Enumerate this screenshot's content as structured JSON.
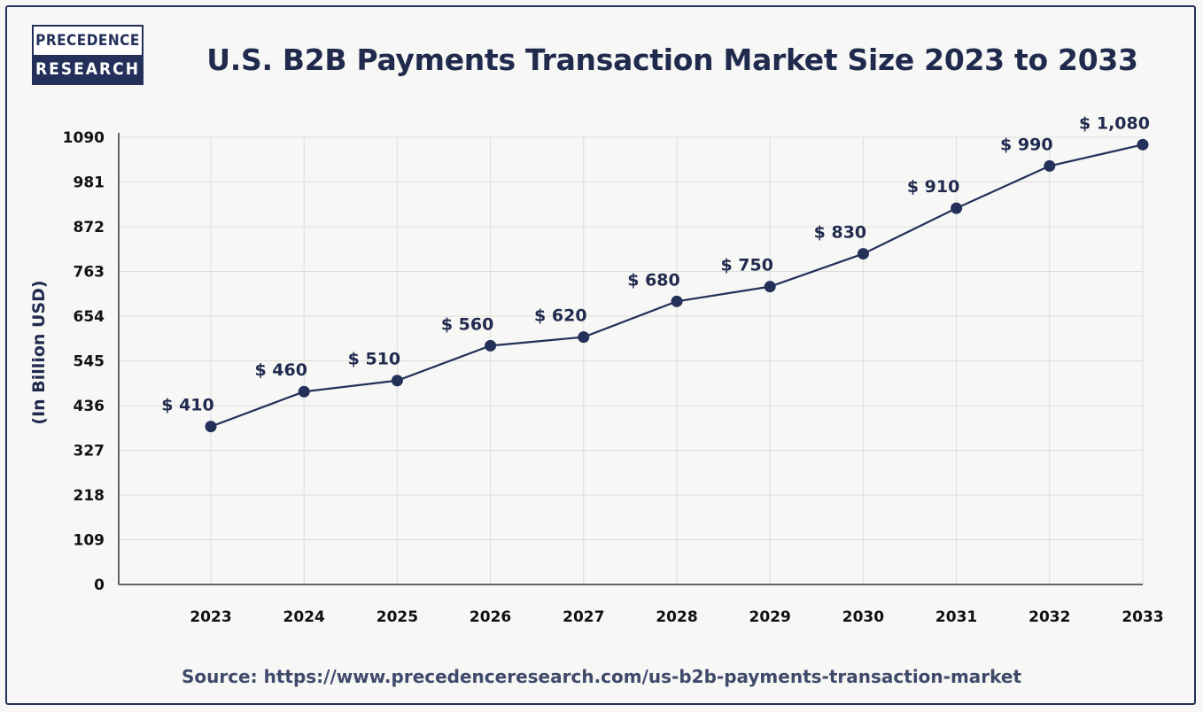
{
  "logo": {
    "line1": "PRECEDENCE",
    "line2": "RESEARCH"
  },
  "source": "Source: https://www.precedenceresearch.com/us-b2b-payments-transaction-market",
  "colors": {
    "line": "#23305a",
    "grid": "#dcdcdc",
    "axis": "#333333"
  },
  "chart_data": {
    "type": "line",
    "title": "U.S. B2B Payments Transaction Market Size 2023 to 2033",
    "xlabel": "",
    "ylabel": "(In Billion USD)",
    "x": [
      "2023",
      "2024",
      "2025",
      "2026",
      "2027",
      "2028",
      "2029",
      "2030",
      "2031",
      "2032",
      "2033"
    ],
    "values": [
      410,
      460,
      510,
      560,
      620,
      680,
      750,
      830,
      910,
      990,
      1080
    ],
    "point_y": [
      385,
      470,
      497,
      582,
      603,
      690,
      726,
      806,
      917,
      1020,
      1072
    ],
    "data_labels": [
      "$ 410",
      "$ 460",
      "$ 510",
      "$ 560",
      "$ 620",
      "$ 680",
      "$ 750",
      "$ 830",
      "$ 910",
      "$ 990",
      "$ 1,080"
    ],
    "yticks": [
      "0",
      "109",
      "218",
      "327",
      "436",
      "545",
      "654",
      "763",
      "872",
      "981",
      "1090"
    ],
    "ylim": [
      0,
      1090
    ],
    "grid": true,
    "legend": "none"
  }
}
